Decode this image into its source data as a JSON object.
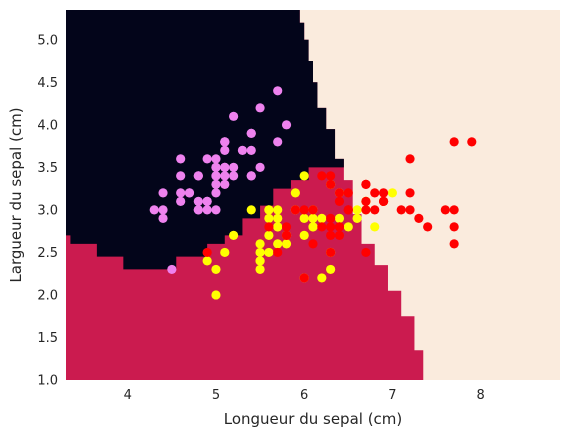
{
  "chart_data": {
    "type": "scatter",
    "title": "",
    "xlabel": "Longueur du sepal (cm)",
    "ylabel": "Largueur du sepal (cm)",
    "xlim": [
      3.3,
      8.9
    ],
    "ylim": [
      1.0,
      5.35
    ],
    "xticks": [
      4,
      5,
      6,
      7,
      8
    ],
    "yticks": [
      1.0,
      1.5,
      2.0,
      2.5,
      3.0,
      3.5,
      4.0,
      4.5,
      5.0
    ],
    "grid": false,
    "legend": "none",
    "decision_regions": {
      "colors": {
        "setosa": "#03051a",
        "versicolor": "#cb1b4f",
        "virginica": "#faebdd"
      },
      "setosa_upper_boundary": {
        "x": [
          3.3,
          3.35,
          3.65,
          3.95,
          4.25,
          4.55,
          4.9,
          5.1,
          5.3,
          5.5,
          5.65,
          5.85,
          6.05
        ],
        "y": [
          2.7,
          2.6,
          2.45,
          2.3,
          2.3,
          2.45,
          2.6,
          2.7,
          2.9,
          3.05,
          3.25,
          3.35,
          3.5
        ]
      },
      "virginica_left_boundary": {
        "y": [
          1.0,
          1.35,
          1.75,
          2.05,
          2.35,
          2.6,
          2.95,
          3.35,
          3.6,
          3.95,
          4.2,
          4.5,
          4.75,
          5.0,
          5.2,
          5.35
        ],
        "x": [
          7.35,
          7.25,
          7.1,
          6.95,
          6.8,
          6.65,
          6.55,
          6.45,
          6.35,
          6.25,
          6.15,
          6.1,
          6.05,
          6.0,
          5.95,
          5.9
        ]
      }
    },
    "series": [
      {
        "color": "#ee82ee",
        "x": [
          5.1,
          4.9,
          4.7,
          4.6,
          5.0,
          5.4,
          4.6,
          5.0,
          4.4,
          4.9,
          5.4,
          4.8,
          4.8,
          4.3,
          5.8,
          5.7,
          5.4,
          5.1,
          5.7,
          5.1,
          5.4,
          5.1,
          4.6,
          5.1,
          4.8,
          5.0,
          5.0,
          5.2,
          5.2,
          4.7,
          4.8,
          5.4,
          5.2,
          5.5,
          4.9,
          5.0,
          5.5,
          4.9,
          4.4,
          5.1,
          5.0,
          4.5,
          4.4,
          5.0,
          5.1,
          4.8,
          5.1,
          4.6,
          5.3,
          5.0
        ],
        "y": [
          3.5,
          3.0,
          3.2,
          3.1,
          3.6,
          3.9,
          3.4,
          3.4,
          2.9,
          3.1,
          3.7,
          3.4,
          3.0,
          3.0,
          4.0,
          4.4,
          3.9,
          3.5,
          3.8,
          3.8,
          3.4,
          3.7,
          3.6,
          3.3,
          3.4,
          3.0,
          3.4,
          3.5,
          3.4,
          3.2,
          3.1,
          3.4,
          4.1,
          4.2,
          3.1,
          3.2,
          3.5,
          3.6,
          3.0,
          3.4,
          3.5,
          2.3,
          3.2,
          3.5,
          3.8,
          3.0,
          3.8,
          3.2,
          3.7,
          3.3
        ]
      },
      {
        "color": "#ffff00",
        "x": [
          7.0,
          6.4,
          6.9,
          5.5,
          6.5,
          5.7,
          6.3,
          4.9,
          6.6,
          5.2,
          5.0,
          5.9,
          6.0,
          6.1,
          5.6,
          6.7,
          5.6,
          5.8,
          6.2,
          5.6,
          5.9,
          6.1,
          6.3,
          6.1,
          6.4,
          6.6,
          6.8,
          6.7,
          6.0,
          5.7,
          5.5,
          5.5,
          5.8,
          6.0,
          5.4,
          6.0,
          6.7,
          6.3,
          5.6,
          5.5,
          5.5,
          6.1,
          5.8,
          5.0,
          5.6,
          5.7,
          5.7,
          6.2,
          5.1,
          5.7
        ],
        "y": [
          3.2,
          3.2,
          3.1,
          2.3,
          2.8,
          2.8,
          3.3,
          2.4,
          2.9,
          2.7,
          2.0,
          3.0,
          2.2,
          2.9,
          2.9,
          3.1,
          3.0,
          2.7,
          2.2,
          2.5,
          3.2,
          2.8,
          2.5,
          2.8,
          2.9,
          3.0,
          2.8,
          3.0,
          2.9,
          2.6,
          2.4,
          2.4,
          2.7,
          2.7,
          3.0,
          3.4,
          3.1,
          2.3,
          3.0,
          2.5,
          2.6,
          3.0,
          2.6,
          2.3,
          2.7,
          3.0,
          2.9,
          2.9,
          2.5,
          2.8
        ]
      },
      {
        "color": "#ff0000",
        "x": [
          6.3,
          5.8,
          7.1,
          6.3,
          6.5,
          7.6,
          4.9,
          7.3,
          6.7,
          7.2,
          6.5,
          6.4,
          6.8,
          5.7,
          5.8,
          6.4,
          6.5,
          7.7,
          7.7,
          6.0,
          6.9,
          5.6,
          7.7,
          6.3,
          6.7,
          7.2,
          6.2,
          6.1,
          6.4,
          7.2,
          7.4,
          7.9,
          6.4,
          6.3,
          6.1,
          7.7,
          6.3,
          6.4,
          6.0,
          6.9,
          6.7,
          6.9,
          5.8,
          6.8,
          6.7,
          6.7,
          6.3,
          6.5,
          6.2,
          5.9
        ],
        "y": [
          3.3,
          2.7,
          3.0,
          2.9,
          3.0,
          3.0,
          2.5,
          2.9,
          2.5,
          3.6,
          3.2,
          2.7,
          3.0,
          2.5,
          2.8,
          3.2,
          3.0,
          3.8,
          2.6,
          2.2,
          3.2,
          2.8,
          2.8,
          2.7,
          3.3,
          3.2,
          2.8,
          3.0,
          2.8,
          3.0,
          2.8,
          3.8,
          2.8,
          2.8,
          2.6,
          3.0,
          3.4,
          3.1,
          3.0,
          3.1,
          3.1,
          3.1,
          2.7,
          3.2,
          3.3,
          3.0,
          2.5,
          3.0,
          3.4,
          3.0
        ]
      }
    ]
  }
}
